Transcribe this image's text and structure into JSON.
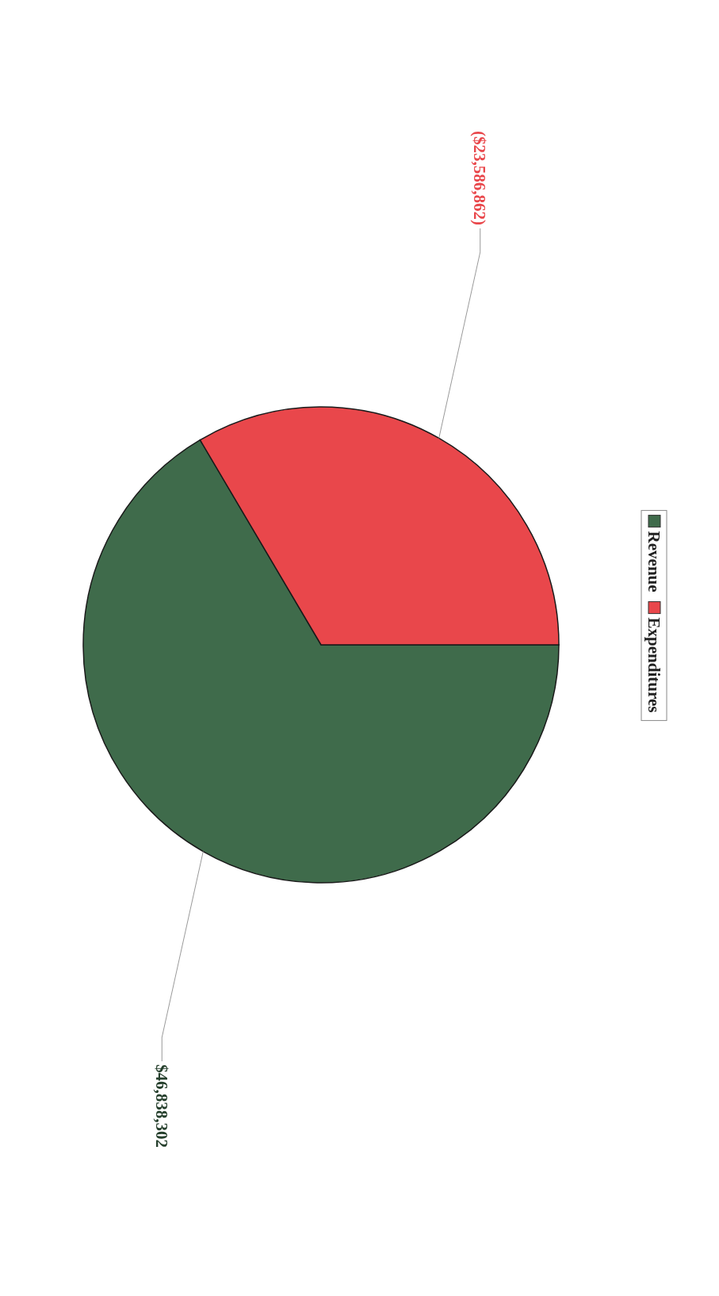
{
  "chart_data": {
    "type": "pie",
    "categories": [
      "Revenue",
      "Expenditures"
    ],
    "values": [
      46838302,
      23586862
    ],
    "colors": [
      "#3f6b4b",
      "#e9474b"
    ],
    "value_labels": [
      "$46,838,302",
      "($23,586,862)"
    ],
    "legend": "right"
  }
}
